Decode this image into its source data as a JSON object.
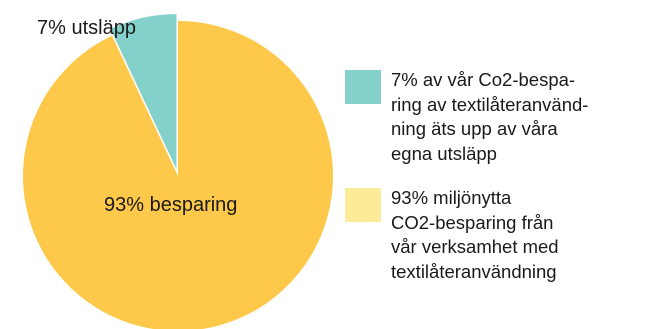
{
  "chart_data": {
    "type": "pie",
    "slices": [
      {
        "label": "7% utsläpp",
        "value": 7,
        "color": "#84d1cc",
        "legend": "7% av vår Co2-bespa-\nring av textilåteranvänd-\nning äts upp av våra\negna utsläpp"
      },
      {
        "label": "93% besparing",
        "value": 93,
        "color": "#fec94a",
        "legend": "93% miljönytta\nCO2-besparing från\nvår verksamhet med\ntextilåteranvändning"
      }
    ],
    "legend_placement": "right",
    "exploded_slice": "7% utsläpp",
    "legend_swatch_colors": [
      "#84d1cc",
      "#fcec9a"
    ]
  }
}
